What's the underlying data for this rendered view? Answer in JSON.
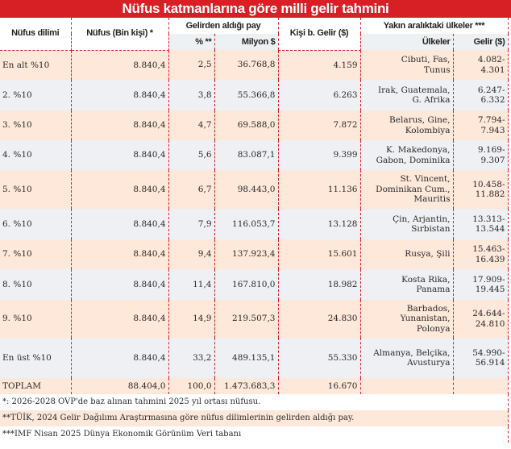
{
  "title": "Nüfus katmanlarına göre milli gelir tahmini",
  "headers": {
    "dilim": "Nüfus dilimi",
    "nufus": "Nüfus  (Bin kişi) *",
    "pay": "Gelirden aldığı pay",
    "pct": "% **",
    "milyon": "Milyon $",
    "kisi": "Kişi b. Gelir ($)",
    "yakin": "Yakın aralıktaki ülkeler ***",
    "ulkeler": "Ülkeler",
    "gelir": "Gelir ($)"
  },
  "rows": [
    {
      "dilim": "En alt %10",
      "nufus": "8.840,4",
      "pct": "2,5",
      "milyon": "36.768,8",
      "kisi": "4.159",
      "ulkeler": [
        "Cibuti, Fas,",
        "Tunus"
      ],
      "gelir": [
        "4.082-",
        "4.301"
      ]
    },
    {
      "dilim": "2. %10",
      "nufus": "8.840,4",
      "pct": "3,8",
      "milyon": "55.366,8",
      "kisi": "6.263",
      "ulkeler": [
        "Irak, Guatemala,",
        "G. Afrika"
      ],
      "gelir": [
        "6.247-",
        "6.332"
      ]
    },
    {
      "dilim": "3. %10",
      "nufus": "8.840,4",
      "pct": "4,7",
      "milyon": "69.588,0",
      "kisi": "7.872",
      "ulkeler": [
        "Belarus, Gine,",
        "Kolombiya"
      ],
      "gelir": [
        "7.794-",
        "7.943"
      ]
    },
    {
      "dilim": "4. %10",
      "nufus": "8.840,4",
      "pct": "5,6",
      "milyon": "83.087,1",
      "kisi": "9.399",
      "ulkeler": [
        "K. Makedonya,",
        "Gabon, Dominika"
      ],
      "gelir": [
        "9.169-",
        "9.307"
      ]
    },
    {
      "dilim": "5. %10",
      "nufus": "8.840,4",
      "pct": "6,7",
      "milyon": "98.443,0",
      "kisi": "11.136",
      "ulkeler": [
        "St. Vincent,",
        "Dominikan Cum.,",
        "Mauritis"
      ],
      "gelir": [
        "10.458-",
        "11.882"
      ]
    },
    {
      "dilim": "6. %10",
      "nufus": "8.840,4",
      "pct": "7,9",
      "milyon": "116.053,7",
      "kisi": "13.128",
      "ulkeler": [
        "Çin, Arjantin,",
        "Sırbistan"
      ],
      "gelir": [
        "13.313-",
        "13.544"
      ]
    },
    {
      "dilim": "7. %10",
      "nufus": "8.840,4",
      "pct": "9,4",
      "milyon": "137.923,4",
      "kisi": "15.601",
      "ulkeler": [
        "Rusya, Şili"
      ],
      "gelir": [
        "15.463-",
        "16.439"
      ]
    },
    {
      "dilim": "8. %10",
      "nufus": "8.840,4",
      "pct": "11,4",
      "milyon": "167.810,0",
      "kisi": "18.982",
      "ulkeler": [
        "Kosta Rika,",
        "Panama"
      ],
      "gelir": [
        "17.909-",
        "19.445"
      ]
    },
    {
      "dilim": "9. %10",
      "nufus": "8.840,4",
      "pct": "14,9",
      "milyon": "219.507,3",
      "kisi": "24.830",
      "ulkeler": [
        "Barbados,",
        "Yunanistan,",
        "Polonya"
      ],
      "gelir": [
        "24.644-",
        "24.810"
      ]
    },
    {
      "dilim": "En üst %10",
      "nufus": "8.840,4",
      "pct": "33,2",
      "milyon": "489.135,1",
      "kisi": "55.330",
      "ulkeler": [
        "Almanya, Belçika,",
        "Avusturya"
      ],
      "gelir": [
        "54.990-",
        "56.914"
      ]
    }
  ],
  "total": {
    "dilim": "TOPLAM",
    "nufus": "88.404,0",
    "pct": "100,0",
    "milyon": "1.473.683,3",
    "kisi": "16.670"
  },
  "footnotes": [
    "*: 2026-2028 OVP'de baz alınan tahmini 2025 yıl ortası nüfusu.",
    "**TÜİK, 2024 Gelir Dağılımı Araştırmasına göre nüfus dilimlerinin gelirden aldığı pay.",
    "***IMF Nisan 2025 Dünya Ekonomik Görünüm Veri tabanı"
  ],
  "colors": {
    "accent": "#d71f26",
    "row_a": "#fde8da",
    "row_b": "#eef0f3"
  }
}
